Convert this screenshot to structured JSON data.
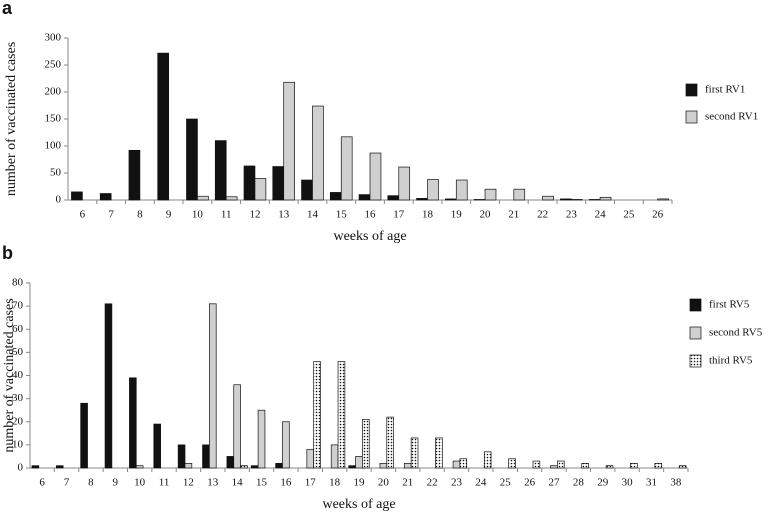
{
  "chart_data": [
    {
      "type": "bar",
      "label": "a",
      "ylabel": "number of vaccinated cases",
      "xlabel": "weeks of age",
      "categories": [
        "6",
        "7",
        "8",
        "9",
        "10",
        "11",
        "12",
        "13",
        "14",
        "15",
        "16",
        "17",
        "18",
        "19",
        "20",
        "21",
        "22",
        "23",
        "24",
        "25",
        "26"
      ],
      "series": [
        {
          "name": "first RV1",
          "color": "#111111",
          "values": [
            15,
            12,
            92,
            272,
            150,
            110,
            63,
            62,
            37,
            14,
            10,
            8,
            3,
            2,
            1,
            0,
            0,
            2,
            1,
            0,
            0
          ]
        },
        {
          "name": "second RV1",
          "color": "#d0d0d0",
          "values": [
            0,
            0,
            0,
            0,
            7,
            6,
            40,
            218,
            174,
            117,
            87,
            61,
            38,
            37,
            20,
            20,
            7,
            1,
            5,
            0,
            2
          ]
        }
      ],
      "ylim": [
        0,
        300
      ],
      "yticks": [
        0,
        50,
        100,
        150,
        200,
        250,
        300
      ],
      "legend": "right"
    },
    {
      "type": "bar",
      "label": "b",
      "ylabel": "number of vaccinated cases",
      "xlabel": "weeks of age",
      "categories": [
        "6",
        "7",
        "8",
        "9",
        "10",
        "11",
        "12",
        "13",
        "14",
        "15",
        "16",
        "17",
        "18",
        "19",
        "20",
        "21",
        "22",
        "23",
        "24",
        "25",
        "26",
        "27",
        "28",
        "29",
        "30",
        "31",
        "38"
      ],
      "series": [
        {
          "name": "first RV5",
          "color": "#111111",
          "values": [
            1,
            1,
            28,
            71,
            39,
            19,
            10,
            10,
            5,
            1,
            2,
            0,
            0,
            1,
            0,
            0,
            0,
            0,
            0,
            0,
            0,
            0,
            0,
            0,
            0,
            0,
            0
          ]
        },
        {
          "name": "second RV5",
          "color": "#d0d0d0",
          "values": [
            0,
            0,
            0,
            0,
            1,
            0,
            2,
            71,
            36,
            25,
            20,
            8,
            10,
            5,
            2,
            2,
            0,
            3,
            0,
            0,
            0,
            1,
            0,
            0,
            0,
            0,
            0
          ]
        },
        {
          "name": "third RV5",
          "color": "#ffffff",
          "pattern": "dots",
          "values": [
            0,
            0,
            0,
            0,
            0,
            0,
            0,
            0,
            1,
            0,
            0,
            46,
            46,
            21,
            22,
            13,
            13,
            4,
            7,
            4,
            3,
            3,
            2,
            1,
            2,
            2,
            1
          ]
        }
      ],
      "ylim": [
        0,
        80
      ],
      "yticks": [
        0,
        10,
        20,
        30,
        40,
        50,
        60,
        70,
        80
      ],
      "legend": "right"
    }
  ]
}
